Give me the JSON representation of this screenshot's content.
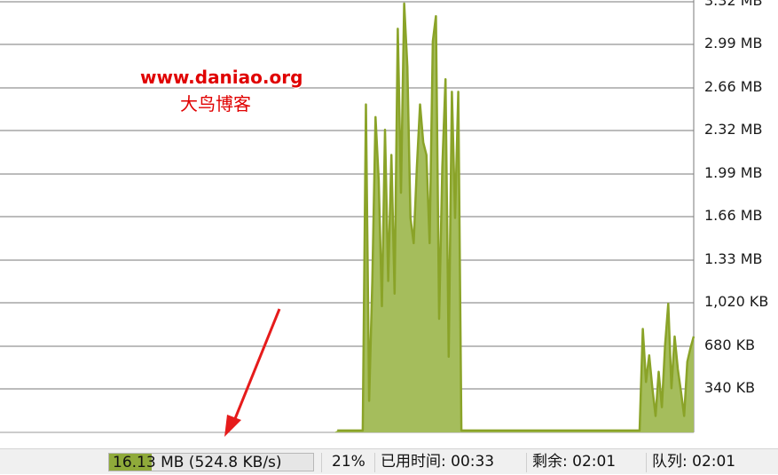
{
  "watermark": {
    "url": "www.daniao.org",
    "name": "大鸟博客"
  },
  "chart_data": {
    "type": "area",
    "y_tick_labels": [
      "3.32 MB",
      "2.99 MB",
      "2.66 MB",
      "2.32 MB",
      "1.99 MB",
      "1.66 MB",
      "1.33 MB",
      "1,020 KB",
      "680 KB",
      "340 KB"
    ],
    "ylim_kb": [
      0,
      3400
    ],
    "grid": true,
    "color": "#8aa328",
    "fill": "#a5bd5c",
    "series": [
      {
        "values_kb": [
          0,
          0,
          0,
          0,
          0,
          0,
          0,
          0,
          0,
          0,
          0,
          0,
          0,
          0,
          0,
          0,
          0,
          0,
          0,
          0,
          0,
          0,
          0,
          0,
          0,
          0,
          0,
          0,
          0,
          0,
          0,
          0,
          0,
          0,
          0,
          0,
          0,
          0,
          0,
          0,
          0,
          0,
          0,
          0,
          0,
          0,
          0,
          0,
          0,
          0,
          0,
          0,
          0,
          0,
          0,
          0,
          0,
          0,
          0,
          0,
          0,
          0,
          0,
          0,
          0,
          0,
          0,
          0,
          0,
          0,
          0,
          0,
          0,
          0,
          0,
          0,
          0,
          0,
          0,
          0,
          0,
          0,
          0,
          0,
          0,
          0,
          0,
          0,
          0,
          0,
          0,
          0,
          0,
          0,
          0,
          0,
          0,
          0,
          0,
          0,
          0,
          0,
          0,
          0,
          0,
          0,
          15,
          15,
          15,
          15,
          15,
          15,
          15,
          15,
          15,
          2600,
          250,
          1200,
          2500,
          2000,
          1000,
          2400,
          1200,
          2200,
          1100,
          3200,
          1900,
          3400,
          2900,
          1700,
          1500,
          2100,
          2600,
          2300,
          2200,
          1500,
          3100,
          3300,
          900,
          2100,
          2800,
          600,
          2700,
          1700,
          2700,
          15,
          15,
          15,
          15,
          15,
          15,
          15,
          15,
          15,
          15,
          15,
          15,
          15,
          15,
          15,
          15,
          15,
          15,
          15,
          15,
          15,
          15,
          15,
          15,
          15,
          15,
          15,
          15,
          15,
          15,
          15,
          15,
          15,
          15,
          15,
          15,
          15,
          15,
          15,
          15,
          15,
          15,
          15,
          15,
          15,
          15,
          15,
          15,
          15,
          15,
          15,
          15,
          15,
          15,
          15,
          15,
          15,
          820,
          400,
          610,
          350,
          130,
          480,
          200,
          690,
          1020,
          350,
          760,
          500,
          320,
          130,
          560,
          670,
          760
        ]
      }
    ]
  },
  "status": {
    "transfer": "16.13 MB (524.8 KB/s)",
    "transfer_progress": 0.21,
    "percent": "21%",
    "elapsed": "已用时间: 00:33",
    "remaining": "剩余: 02:01",
    "queue": "队列: 02:01"
  }
}
